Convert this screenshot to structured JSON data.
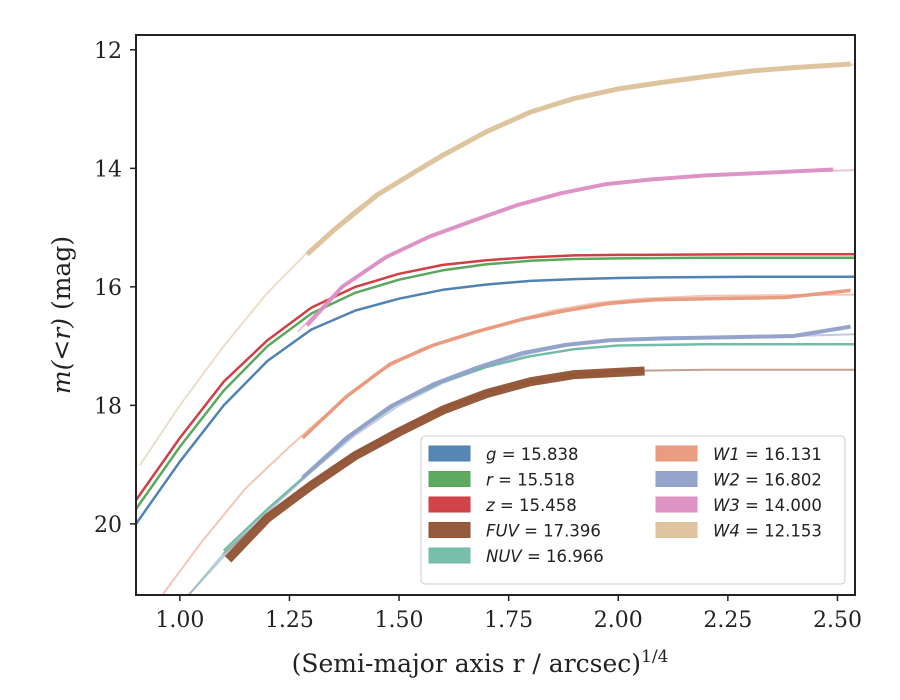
{
  "chart_data": {
    "type": "line",
    "xlabel": "(Semi-major axis r / arcsec)",
    "xlabel_sup": "1/4",
    "ylabel_prefix": "m(<r)",
    "ylabel_suffix": " (mag)",
    "xlim": [
      0.9,
      2.54
    ],
    "ylim": [
      21.2,
      11.75
    ],
    "y_inverted": true,
    "x_ticks": [
      "1.00",
      "1.25",
      "1.50",
      "1.75",
      "2.00",
      "2.25",
      "2.50"
    ],
    "y_ticks": [
      "12",
      "14",
      "16",
      "18",
      "20"
    ],
    "grid": false,
    "legend_position": "lower-right",
    "legend": [
      {
        "band": "g",
        "value": "15.838",
        "color": "#4c7fb0"
      },
      {
        "band": "r",
        "value": "15.518",
        "color": "#55a558"
      },
      {
        "band": "z",
        "value": "15.458",
        "color": "#cf3a3f"
      },
      {
        "band": "FUV",
        "value": "17.396",
        "color": "#8f5232"
      },
      {
        "band": "NUV",
        "value": "16.966",
        "color": "#71bba6"
      },
      {
        "band": "W1",
        "value": "16.131",
        "color": "#e9977a"
      },
      {
        "band": "W2",
        "value": "16.802",
        "color": "#8f9fc8"
      },
      {
        "band": "W3",
        "value": "14.000",
        "color": "#dc8fc3"
      },
      {
        "band": "W4",
        "value": "12.153",
        "color": "#dcc29a"
      }
    ],
    "series": [
      {
        "name": "g",
        "color": "#4c7fb0",
        "faint": [
          [
            0.9,
            20.0
          ],
          [
            1.0,
            18.95
          ],
          [
            1.1,
            18.0
          ],
          [
            1.2,
            17.25
          ],
          [
            1.3,
            16.72
          ],
          [
            1.4,
            16.4
          ],
          [
            1.5,
            16.2
          ],
          [
            1.6,
            16.05
          ],
          [
            1.7,
            15.96
          ],
          [
            1.8,
            15.9
          ],
          [
            1.9,
            15.87
          ],
          [
            2.0,
            15.85
          ],
          [
            2.1,
            15.84
          ],
          [
            2.3,
            15.83
          ],
          [
            2.54,
            15.83
          ]
        ],
        "bold": [
          [
            0.9,
            20.0
          ],
          [
            1.0,
            18.95
          ],
          [
            1.1,
            18.0
          ],
          [
            1.2,
            17.25
          ],
          [
            1.3,
            16.72
          ],
          [
            1.4,
            16.4
          ],
          [
            1.5,
            16.2
          ],
          [
            1.6,
            16.05
          ],
          [
            1.7,
            15.96
          ],
          [
            1.8,
            15.9
          ],
          [
            1.9,
            15.87
          ],
          [
            2.0,
            15.85
          ],
          [
            2.1,
            15.84
          ],
          [
            2.3,
            15.83
          ],
          [
            2.54,
            15.83
          ]
        ],
        "bold_width": 2.5
      },
      {
        "name": "r",
        "color": "#55a558",
        "faint": [
          [
            0.9,
            19.75
          ],
          [
            1.0,
            18.7
          ],
          [
            1.1,
            17.75
          ],
          [
            1.2,
            17.0
          ],
          [
            1.3,
            16.45
          ],
          [
            1.4,
            16.1
          ],
          [
            1.5,
            15.88
          ],
          [
            1.6,
            15.72
          ],
          [
            1.7,
            15.62
          ],
          [
            1.8,
            15.56
          ],
          [
            1.9,
            15.53
          ],
          [
            2.0,
            15.52
          ],
          [
            2.2,
            15.51
          ],
          [
            2.54,
            15.51
          ]
        ],
        "bold": [
          [
            0.9,
            19.75
          ],
          [
            1.0,
            18.7
          ],
          [
            1.1,
            17.75
          ],
          [
            1.2,
            17.0
          ],
          [
            1.3,
            16.45
          ],
          [
            1.4,
            16.1
          ],
          [
            1.5,
            15.88
          ],
          [
            1.6,
            15.72
          ],
          [
            1.7,
            15.62
          ],
          [
            1.8,
            15.56
          ],
          [
            1.9,
            15.53
          ],
          [
            2.0,
            15.52
          ],
          [
            2.2,
            15.51
          ],
          [
            2.54,
            15.51
          ]
        ],
        "bold_width": 2.5
      },
      {
        "name": "z",
        "color": "#cf3a3f",
        "faint": [
          [
            0.9,
            19.6
          ],
          [
            1.0,
            18.55
          ],
          [
            1.1,
            17.6
          ],
          [
            1.2,
            16.9
          ],
          [
            1.3,
            16.35
          ],
          [
            1.4,
            16.0
          ],
          [
            1.5,
            15.78
          ],
          [
            1.6,
            15.63
          ],
          [
            1.7,
            15.55
          ],
          [
            1.8,
            15.5
          ],
          [
            1.9,
            15.47
          ],
          [
            2.0,
            15.46
          ],
          [
            2.3,
            15.45
          ],
          [
            2.54,
            15.45
          ]
        ],
        "bold": [
          [
            0.9,
            19.6
          ],
          [
            1.0,
            18.55
          ],
          [
            1.1,
            17.6
          ],
          [
            1.2,
            16.9
          ],
          [
            1.3,
            16.35
          ],
          [
            1.4,
            16.0
          ],
          [
            1.5,
            15.78
          ],
          [
            1.6,
            15.63
          ],
          [
            1.7,
            15.55
          ],
          [
            1.8,
            15.5
          ],
          [
            1.9,
            15.47
          ],
          [
            2.0,
            15.46
          ],
          [
            2.3,
            15.45
          ],
          [
            2.54,
            15.45
          ]
        ],
        "bold_width": 2.5
      },
      {
        "name": "FUV",
        "color": "#8f5232",
        "faint": [
          [
            1.1,
            20.5
          ],
          [
            1.2,
            19.85
          ],
          [
            1.3,
            19.3
          ],
          [
            1.4,
            18.8
          ],
          [
            1.5,
            18.4
          ],
          [
            1.6,
            18.05
          ],
          [
            1.7,
            17.78
          ],
          [
            1.8,
            17.6
          ],
          [
            1.9,
            17.48
          ],
          [
            2.0,
            17.42
          ],
          [
            2.2,
            17.4
          ],
          [
            2.54,
            17.4
          ]
        ],
        "bold": [
          [
            1.11,
            20.6
          ],
          [
            1.2,
            19.9
          ],
          [
            1.3,
            19.35
          ],
          [
            1.4,
            18.85
          ],
          [
            1.5,
            18.45
          ],
          [
            1.6,
            18.08
          ],
          [
            1.7,
            17.8
          ],
          [
            1.8,
            17.6
          ],
          [
            1.9,
            17.48
          ],
          [
            2.06,
            17.42
          ]
        ],
        "bold_width": 9
      },
      {
        "name": "NUV",
        "color": "#71bba6",
        "faint": [
          [
            1.02,
            21.2
          ],
          [
            1.1,
            20.5
          ],
          [
            1.2,
            19.75
          ],
          [
            1.3,
            19.1
          ],
          [
            1.4,
            18.45
          ],
          [
            1.5,
            17.95
          ],
          [
            1.6,
            17.6
          ],
          [
            1.7,
            17.35
          ],
          [
            1.8,
            17.17
          ],
          [
            1.9,
            17.05
          ],
          [
            2.0,
            16.99
          ],
          [
            2.2,
            16.97
          ],
          [
            2.54,
            16.97
          ]
        ],
        "bold": [
          [
            1.1,
            20.45
          ],
          [
            1.2,
            19.75
          ],
          [
            1.3,
            19.1
          ],
          [
            1.4,
            18.45
          ],
          [
            1.5,
            17.95
          ],
          [
            1.6,
            17.6
          ],
          [
            1.7,
            17.35
          ],
          [
            1.8,
            17.17
          ],
          [
            1.9,
            17.05
          ],
          [
            2.0,
            16.99
          ],
          [
            2.2,
            16.97
          ],
          [
            2.54,
            16.97
          ]
        ],
        "bold_width": 2.5
      },
      {
        "name": "W1",
        "color": "#e9977a",
        "faint": [
          [
            0.96,
            21.2
          ],
          [
            1.05,
            20.3
          ],
          [
            1.15,
            19.4
          ],
          [
            1.25,
            18.7
          ],
          [
            1.35,
            18.05
          ],
          [
            1.45,
            17.45
          ],
          [
            1.55,
            17.05
          ],
          [
            1.65,
            16.8
          ],
          [
            1.75,
            16.6
          ],
          [
            1.85,
            16.4
          ],
          [
            1.95,
            16.27
          ],
          [
            2.05,
            16.2
          ],
          [
            2.2,
            16.15
          ],
          [
            2.54,
            16.13
          ]
        ],
        "bold": [
          [
            1.28,
            18.55
          ],
          [
            1.38,
            17.85
          ],
          [
            1.48,
            17.3
          ],
          [
            1.58,
            16.98
          ],
          [
            1.68,
            16.75
          ],
          [
            1.78,
            16.55
          ],
          [
            1.88,
            16.4
          ],
          [
            1.98,
            16.28
          ],
          [
            2.08,
            16.22
          ],
          [
            2.2,
            16.2
          ],
          [
            2.38,
            16.18
          ],
          [
            2.53,
            16.06
          ]
        ],
        "bold_width": 3.5
      },
      {
        "name": "W2",
        "color": "#8f9fc8",
        "faint": [
          [
            1.02,
            21.2
          ],
          [
            1.1,
            20.55
          ],
          [
            1.2,
            19.8
          ],
          [
            1.3,
            19.12
          ],
          [
            1.4,
            18.5
          ],
          [
            1.5,
            18.0
          ],
          [
            1.6,
            17.62
          ],
          [
            1.7,
            17.35
          ],
          [
            1.8,
            17.12
          ],
          [
            1.9,
            16.97
          ],
          [
            2.0,
            16.9
          ],
          [
            2.2,
            16.87
          ],
          [
            2.4,
            16.83
          ],
          [
            2.54,
            16.8
          ]
        ],
        "bold": [
          [
            1.28,
            19.22
          ],
          [
            1.38,
            18.55
          ],
          [
            1.48,
            18.02
          ],
          [
            1.58,
            17.64
          ],
          [
            1.68,
            17.36
          ],
          [
            1.78,
            17.12
          ],
          [
            1.88,
            16.98
          ],
          [
            1.98,
            16.9
          ],
          [
            2.1,
            16.87
          ],
          [
            2.25,
            16.85
          ],
          [
            2.4,
            16.83
          ],
          [
            2.53,
            16.67
          ]
        ],
        "bold_width": 4
      },
      {
        "name": "W3",
        "color": "#dc8fc3",
        "faint": [
          [
            1.27,
            16.75
          ],
          [
            1.37,
            16.0
          ],
          [
            1.47,
            15.5
          ],
          [
            1.57,
            15.15
          ],
          [
            1.67,
            14.88
          ],
          [
            1.77,
            14.62
          ],
          [
            1.87,
            14.42
          ],
          [
            1.97,
            14.27
          ],
          [
            2.07,
            14.19
          ],
          [
            2.2,
            14.12
          ],
          [
            2.35,
            14.07
          ],
          [
            2.54,
            14.03
          ]
        ],
        "bold": [
          [
            1.29,
            16.65
          ],
          [
            1.37,
            16.0
          ],
          [
            1.47,
            15.5
          ],
          [
            1.57,
            15.15
          ],
          [
            1.67,
            14.88
          ],
          [
            1.77,
            14.62
          ],
          [
            1.87,
            14.42
          ],
          [
            1.97,
            14.27
          ],
          [
            2.07,
            14.19
          ],
          [
            2.2,
            14.12
          ],
          [
            2.35,
            14.07
          ],
          [
            2.49,
            14.02
          ]
        ],
        "bold_width": 4
      },
      {
        "name": "W4",
        "color": "#dcc29a",
        "faint": [
          [
            0.91,
            19.0
          ],
          [
            1.0,
            18.0
          ],
          [
            1.1,
            17.0
          ],
          [
            1.2,
            16.1
          ],
          [
            1.3,
            15.35
          ],
          [
            1.4,
            14.7
          ],
          [
            1.5,
            14.2
          ],
          [
            1.6,
            13.75
          ],
          [
            1.7,
            13.38
          ],
          [
            1.8,
            13.05
          ],
          [
            1.9,
            12.82
          ],
          [
            2.0,
            12.66
          ],
          [
            2.1,
            12.55
          ],
          [
            2.2,
            12.45
          ],
          [
            2.3,
            12.36
          ],
          [
            2.4,
            12.3
          ],
          [
            2.54,
            12.25
          ]
        ],
        "bold": [
          [
            1.29,
            15.45
          ],
          [
            1.35,
            15.05
          ],
          [
            1.45,
            14.45
          ],
          [
            1.55,
            14.0
          ],
          [
            1.6,
            13.78
          ],
          [
            1.7,
            13.38
          ],
          [
            1.8,
            13.05
          ],
          [
            1.9,
            12.82
          ],
          [
            2.0,
            12.66
          ],
          [
            2.1,
            12.55
          ],
          [
            2.2,
            12.45
          ],
          [
            2.3,
            12.36
          ],
          [
            2.4,
            12.3
          ],
          [
            2.53,
            12.24
          ]
        ],
        "bold_width": 5
      }
    ]
  }
}
